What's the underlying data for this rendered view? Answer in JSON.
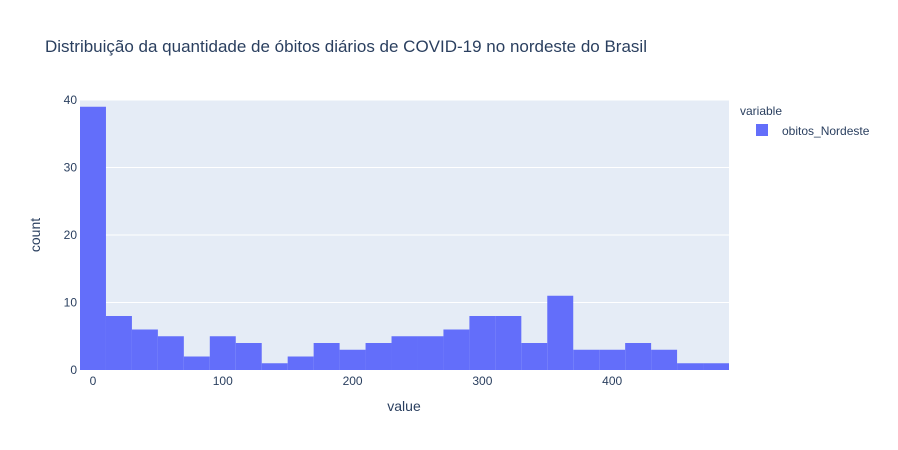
{
  "chart_data": {
    "type": "bar",
    "subtype": "histogram",
    "title": "Distribuição da quantidade de óbitos diários de COVID-19 no nordeste do Brasil",
    "xlabel": "value",
    "ylabel": "count",
    "xlim": [
      -10,
      490
    ],
    "ylim": [
      0,
      40
    ],
    "xticks": [
      0,
      100,
      200,
      300,
      400
    ],
    "yticks": [
      0,
      10,
      20,
      30,
      40
    ],
    "bin_start": -10,
    "bin_width": 20,
    "values": [
      39,
      8,
      6,
      5,
      2,
      5,
      4,
      1,
      2,
      4,
      3,
      4,
      5,
      5,
      6,
      8,
      8,
      4,
      11,
      3,
      3,
      4,
      3,
      1,
      1
    ],
    "legend": {
      "title": "variable",
      "position": "top-right",
      "entries": [
        "obitos_Nordeste"
      ]
    },
    "series": [
      {
        "name": "obitos_Nordeste",
        "color": "#636efa"
      }
    ],
    "grid": true,
    "colors": {
      "plot_bg": "#e5ecf6",
      "grid": "#ffffff",
      "bar": "#636efa",
      "text": "#2a3f5f"
    }
  }
}
